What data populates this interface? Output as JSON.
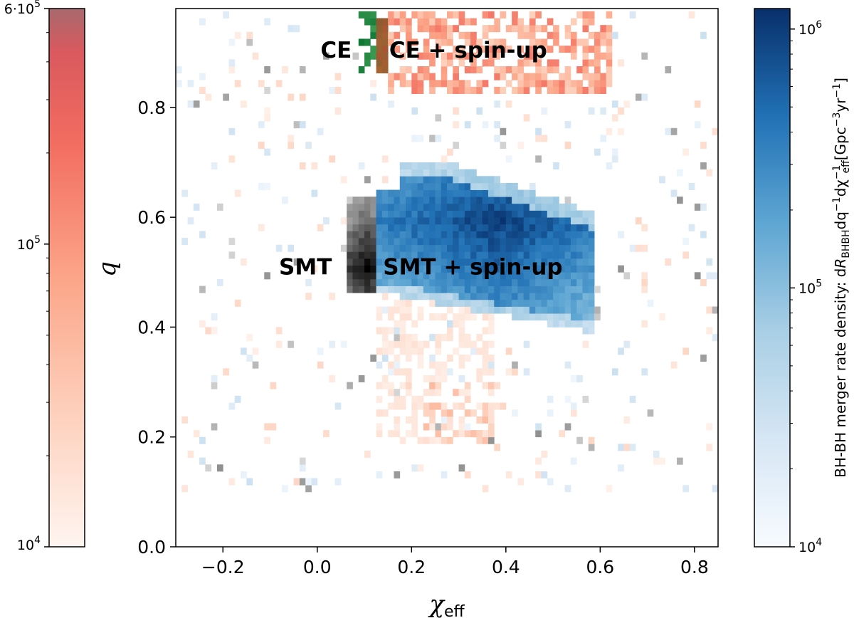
{
  "chart_data": {
    "type": "heatmap",
    "xlabel": "χ",
    "xlabel_sub": "eff",
    "ylabel": "q",
    "xlim": [
      -0.3,
      0.85
    ],
    "ylim": [
      0.0,
      0.98
    ],
    "xticks": [
      -0.2,
      0.0,
      0.2,
      0.4,
      0.6,
      0.8
    ],
    "xtick_labels": [
      "−0.2",
      "0.0",
      "0.2",
      "0.4",
      "0.6",
      "0.8"
    ],
    "yticks": [
      0.0,
      0.2,
      0.4,
      0.6,
      0.8
    ],
    "ytick_labels": [
      "0.0",
      "0.2",
      "0.4",
      "0.6",
      "0.8"
    ],
    "grid": false,
    "annotations": [
      {
        "text": "CE",
        "x": 0.04,
        "y": 0.905
      },
      {
        "text": "CE + spin-up",
        "x": 0.32,
        "y": 0.905
      },
      {
        "text": "SMT",
        "x": -0.025,
        "y": 0.51
      },
      {
        "text": "SMT + spin-up",
        "x": 0.33,
        "y": 0.51
      }
    ],
    "series": [
      {
        "name": "CE + spin-up",
        "color": "#de2d26",
        "region": {
          "x": [
            0.16,
            0.62
          ],
          "y": [
            0.82,
            0.98
          ]
        },
        "peak_density": 600000
      },
      {
        "name": "CE",
        "color": "#006d2c",
        "region": {
          "x": [
            0.09,
            0.14
          ],
          "y": [
            0.86,
            0.98
          ]
        }
      },
      {
        "name": "SMT",
        "color": "#000000",
        "region": {
          "x": [
            0.06,
            0.13
          ],
          "y": [
            0.46,
            0.63
          ]
        }
      },
      {
        "name": "SMT + spin-up",
        "color": "#08306b",
        "region": {
          "x": [
            0.13,
            0.58
          ],
          "y": [
            0.37,
            0.7
          ]
        },
        "peak_density": 1200000
      }
    ],
    "colorbar_left": {
      "scale": "log",
      "range": [
        10000,
        600000
      ],
      "tick_labels": [
        {
          "value": 10000,
          "base": "10",
          "exp": "4",
          "prefix": ""
        },
        {
          "value": 100000,
          "base": "10",
          "exp": "5",
          "prefix": ""
        },
        {
          "value": 600000,
          "base": "10",
          "exp": "5",
          "prefix": "6·"
        }
      ],
      "colormap": "Reds"
    },
    "colorbar_right": {
      "scale": "log",
      "range": [
        10000,
        1200000
      ],
      "tick_labels": [
        {
          "value": 10000,
          "base": "10",
          "exp": "4"
        },
        {
          "value": 100000,
          "base": "10",
          "exp": "5"
        },
        {
          "value": 1000000,
          "base": "10",
          "exp": "6"
        }
      ],
      "colormap": "Blues",
      "label": {
        "main": "BH-BH merger rate density: d",
        "R": "R",
        "R_sub": "BHBH",
        "q_part": "dq",
        "q_sup": "−1",
        "chi_part": "dχ",
        "chi_sup": "−1",
        "chi_sub": "eff",
        "units": "[Gpc",
        "units_sup1": "−3",
        "units_mid": "yr",
        "units_sup2": "−1",
        "units_end": "]"
      }
    }
  }
}
